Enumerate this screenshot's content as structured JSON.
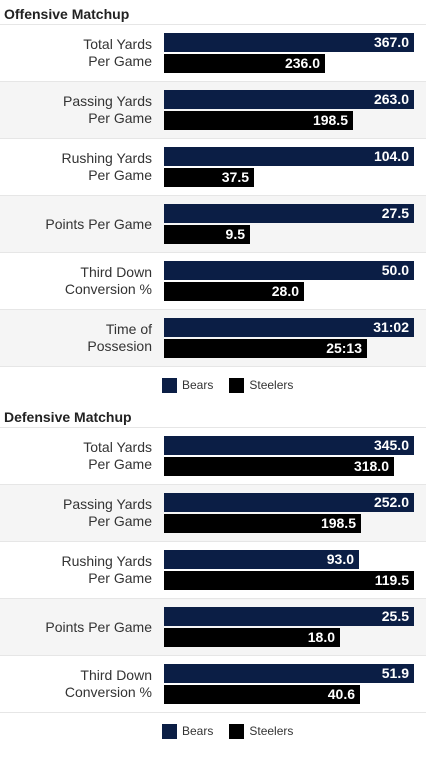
{
  "colors": {
    "bears": "#0b1e45",
    "steelers": "#000000"
  },
  "chart_data": [
    {
      "type": "bar",
      "orientation": "horizontal",
      "title": "Offensive Matchup",
      "categories": [
        "Total Yards\nPer Game",
        "Passing Yards\nPer Game",
        "Rushing Yards\nPer Game",
        "Points Per Game",
        "Third Down\nConversion %",
        "Time of\nPossesion"
      ],
      "series": [
        {
          "name": "Bears",
          "values": [
            367.0,
            263.0,
            104.0,
            27.5,
            50.0,
            31.03
          ],
          "labels": [
            "367.0",
            "263.0",
            "104.0",
            "27.5",
            "50.0",
            "31:02"
          ]
        },
        {
          "name": "Steelers",
          "values": [
            236.0,
            198.5,
            37.5,
            9.5,
            28.0,
            25.22
          ],
          "labels": [
            "236.0",
            "198.5",
            "37.5",
            "9.5",
            "28.0",
            "25:13"
          ]
        }
      ],
      "legend": "bottom"
    },
    {
      "type": "bar",
      "orientation": "horizontal",
      "title": "Defensive Matchup",
      "categories": [
        "Total Yards\nPer Game",
        "Passing Yards\nPer Game",
        "Rushing Yards\nPer Game",
        "Points Per Game",
        "Third Down\nConversion %"
      ],
      "series": [
        {
          "name": "Bears",
          "values": [
            345.0,
            252.0,
            93.0,
            25.5,
            51.9
          ],
          "labels": [
            "345.0",
            "252.0",
            "93.0",
            "25.5",
            "51.9"
          ]
        },
        {
          "name": "Steelers",
          "values": [
            318.0,
            198.5,
            119.5,
            18.0,
            40.6
          ],
          "labels": [
            "318.0",
            "198.5",
            "119.5",
            "18.0",
            "40.6"
          ]
        }
      ],
      "legend": "bottom"
    }
  ]
}
